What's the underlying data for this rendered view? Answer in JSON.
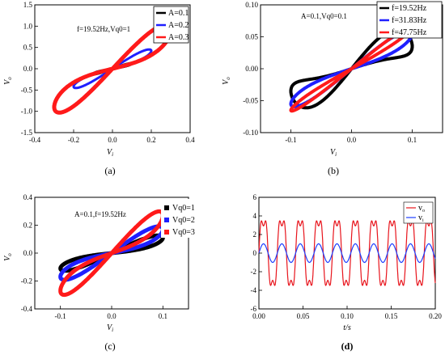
{
  "chart_data": [
    {
      "type": "line",
      "subplot_label": "(a)",
      "annotation": "f=19.52Hz,Vq0=1",
      "xlabel": "V_i",
      "ylabel": "V_o",
      "xlim": [
        -0.4,
        0.4
      ],
      "ylim": [
        -1.5,
        1.5
      ],
      "xticks": [
        "-0.4",
        "-0.2",
        "0.0",
        "0.2",
        "0.4"
      ],
      "yticks": [
        "1.5",
        "1.0",
        "0.5",
        "0.0",
        "-0.5",
        "-1.0",
        "-1.5"
      ],
      "legend_position": "top-right",
      "series": [
        {
          "name": "A=0.1",
          "color": "#000000",
          "amplitude_x": 0.1,
          "amplitude_y": 0.12,
          "loop": 0.025
        },
        {
          "name": "A=0.2",
          "color": "#1f1fff",
          "amplitude_x": 0.2,
          "amplitude_y": 0.42,
          "loop": 0.09
        },
        {
          "name": "A=0.3",
          "color": "#ff1a1a",
          "amplitude_x": 0.3,
          "amplitude_y": 0.9,
          "loop": 0.28
        }
      ]
    },
    {
      "type": "line",
      "subplot_label": "(b)",
      "annotation": "A=0.1,Vq0=0.1",
      "xlabel": "V_i",
      "ylabel": "V_o",
      "xlim": [
        -0.15,
        0.15
      ],
      "ylim": [
        -0.1,
        0.1
      ],
      "xticks": [
        "-0.1",
        "0.0",
        "0.1"
      ],
      "yticks": [
        "0.10",
        "0.05",
        "0.00",
        "-0.05",
        "-0.10"
      ],
      "legend_position": "top-right",
      "series": [
        {
          "name": "f=19.52Hz",
          "color": "#000000",
          "amplitude_x": 0.1,
          "amplitude_y": 0.045,
          "lobe": 0.022
        },
        {
          "name": "f=31.83Hz",
          "color": "#1f1fff",
          "amplitude_x": 0.1,
          "amplitude_y": 0.055,
          "lobe": 0.012
        },
        {
          "name": "f=47.75Hz",
          "color": "#ff1a1a",
          "amplitude_x": 0.1,
          "amplitude_y": 0.065,
          "lobe": 0.006
        }
      ]
    },
    {
      "type": "line",
      "subplot_label": "(c)",
      "annotation": "A=0.1,f=19.52Hz",
      "xlabel": "V_i",
      "ylabel": "V_o",
      "xlim": [
        -0.15,
        0.15
      ],
      "ylim": [
        -0.4,
        0.4
      ],
      "xticks": [
        "-0.1",
        "0.0",
        "0.1"
      ],
      "yticks": [
        "0.4",
        "0.2",
        "0.0",
        "-0.2",
        "-0.4"
      ],
      "legend_position": "top-right",
      "series": [
        {
          "name": "Vq0=1",
          "color": "#000000",
          "amplitude_x": 0.1,
          "amplitude_y": 0.11,
          "loop": 0.05
        },
        {
          "name": "Vq0=2",
          "color": "#1f1fff",
          "amplitude_x": 0.1,
          "amplitude_y": 0.17,
          "loop": 0.07
        },
        {
          "name": "Vq0=3",
          "color": "#ff1a1a",
          "amplitude_x": 0.1,
          "amplitude_y": 0.27,
          "loop": 0.1
        }
      ]
    },
    {
      "type": "line",
      "subplot_label": "(d)",
      "xlabel": "t/s",
      "ylabel": "",
      "xlim": [
        0.0,
        0.2
      ],
      "ylim": [
        -6,
        6
      ],
      "xticks": [
        "0.00",
        "0.05",
        "0.10",
        "0.15",
        "0.20"
      ],
      "yticks": [
        "6",
        "4",
        "2",
        "0",
        "-2",
        "-4",
        "-6"
      ],
      "legend_position": "top-right",
      "series": [
        {
          "name": "v_o",
          "color": "#e8141c",
          "frequency": 48,
          "amplitude": 3.9
        },
        {
          "name": "v_i",
          "color": "#1f3fff",
          "frequency": 48,
          "amplitude": 1.0
        }
      ]
    }
  ]
}
